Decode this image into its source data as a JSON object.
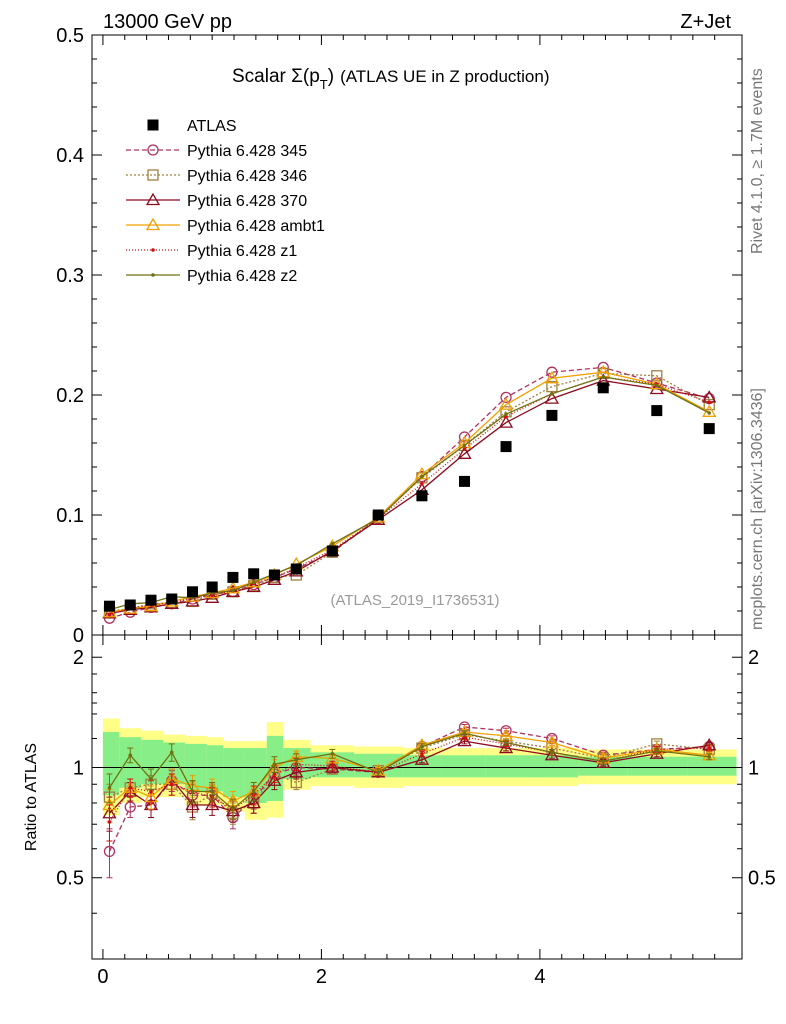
{
  "header": {
    "left": "13000 GeV pp",
    "right": "Z+Jet"
  },
  "side_labels": {
    "rivet": "Rivet 4.1.0, ≥ 1.7M events",
    "mcplots": "mcplots.cern.ch [arXiv:1306.3436]"
  },
  "reference": "(ATLAS_2019_I1736531)",
  "chart_data": [
    {
      "type": "scatter",
      "panel": "main",
      "title": "Scalar Σ(pT) (ATLAS UE in Z production)",
      "title_parts": {
        "main": "Scalar Σ(p",
        "sub": "T",
        "close": ")",
        "rest": "(ATLAS UE in Z production)"
      },
      "xlabel": "",
      "ylabel": "",
      "xlim": [
        -0.1,
        5.85
      ],
      "ylim": [
        0,
        0.5
      ],
      "yticks": [
        0,
        0.1,
        0.2,
        0.3,
        0.4,
        0.5
      ],
      "ytick_labels": [
        "0",
        "0.1",
        "0.2",
        "0.3",
        "0.4",
        "0.5"
      ],
      "legend_position": "top-left",
      "x": [
        0.06,
        0.25,
        0.44,
        0.63,
        0.82,
        1.0,
        1.19,
        1.38,
        1.57,
        1.77,
        2.1,
        2.52,
        2.92,
        3.31,
        3.69,
        4.11,
        4.58,
        5.07,
        5.55
      ],
      "series": [
        {
          "name": "ATLAS",
          "style": "data",
          "color": "#000000",
          "values": [
            0.024,
            0.025,
            0.029,
            0.03,
            0.036,
            0.04,
            0.048,
            0.051,
            0.05,
            0.055,
            0.07,
            0.1,
            0.116,
            0.128,
            0.157,
            0.183,
            0.206,
            0.187,
            0.172
          ]
        },
        {
          "name": "Pythia 6.428 345",
          "color": "#b03060",
          "dash": "5,3",
          "marker": "circle",
          "values": [
            0.014,
            0.019,
            0.023,
            0.026,
            0.03,
            0.034,
            0.036,
            0.042,
            0.048,
            0.055,
            0.069,
            0.097,
            0.132,
            0.165,
            0.198,
            0.219,
            0.223,
            0.21,
            0.197
          ]
        },
        {
          "name": "Pythia 6.428 346",
          "color": "#a08040",
          "dash": "2,2",
          "marker": "square",
          "values": [
            0.02,
            0.022,
            0.026,
            0.027,
            0.028,
            0.034,
            0.036,
            0.041,
            0.048,
            0.05,
            0.069,
            0.098,
            0.131,
            0.158,
            0.186,
            0.207,
            0.218,
            0.216,
            0.192
          ]
        },
        {
          "name": "Pythia 6.428 370",
          "color": "#8b0a1e",
          "dash": "",
          "marker": "triangle",
          "values": [
            0.018,
            0.021,
            0.023,
            0.026,
            0.028,
            0.031,
            0.036,
            0.04,
            0.046,
            0.053,
            0.07,
            0.096,
            0.121,
            0.151,
            0.177,
            0.197,
            0.212,
            0.205,
            0.198
          ]
        },
        {
          "name": "Pythia 6.428 ambt1",
          "color": "#f0a000",
          "dash": "",
          "marker": "triangle",
          "values": [
            0.019,
            0.022,
            0.024,
            0.028,
            0.032,
            0.035,
            0.039,
            0.044,
            0.05,
            0.059,
            0.074,
            0.098,
            0.134,
            0.16,
            0.192,
            0.214,
            0.219,
            0.209,
            0.186
          ]
        },
        {
          "name": "Pythia 6.428 z1",
          "color": "#d01010",
          "dash": "1,2",
          "marker": "dot",
          "values": [
            0.017,
            0.022,
            0.025,
            0.027,
            0.031,
            0.033,
            0.037,
            0.043,
            0.048,
            0.056,
            0.071,
            0.097,
            0.126,
            0.155,
            0.182,
            0.201,
            0.215,
            0.209,
            0.194
          ]
        },
        {
          "name": "Pythia 6.428 z2",
          "color": "#707010",
          "dash": "",
          "marker": "dot",
          "values": [
            0.021,
            0.026,
            0.027,
            0.032,
            0.031,
            0.035,
            0.037,
            0.044,
            0.051,
            0.058,
            0.076,
            0.097,
            0.132,
            0.158,
            0.184,
            0.201,
            0.215,
            0.208,
            0.185
          ]
        }
      ]
    },
    {
      "type": "line",
      "panel": "ratio",
      "ylabel": "Ratio to ATLAS",
      "ylim": [
        0.3,
        2.3
      ],
      "yticks": [
        0.5,
        1,
        2
      ],
      "ytick_labels": [
        "0.5",
        "1",
        "2"
      ],
      "xticks": [
        0,
        2,
        4
      ],
      "xtick_labels": [
        "0",
        "2",
        "4"
      ],
      "x": [
        0.06,
        0.25,
        0.44,
        0.63,
        0.82,
        1.0,
        1.19,
        1.38,
        1.57,
        1.77,
        2.1,
        2.52,
        2.92,
        3.31,
        3.69,
        4.11,
        4.58,
        5.07,
        5.55
      ],
      "bin_edges": [
        0,
        0.15,
        0.35,
        0.55,
        0.75,
        0.95,
        1.1,
        1.3,
        1.5,
        1.65,
        1.9,
        2.3,
        2.75,
        3.1,
        3.5,
        3.9,
        4.35,
        4.8,
        5.35,
        5.8
      ],
      "band_total": [
        [
          0.74,
          1.36
        ],
        [
          0.8,
          1.28
        ],
        [
          0.83,
          1.26
        ],
        [
          0.83,
          1.23
        ],
        [
          0.79,
          1.22
        ],
        [
          0.79,
          1.21
        ],
        [
          0.76,
          1.18
        ],
        [
          0.72,
          1.18
        ],
        [
          0.73,
          1.33
        ],
        [
          0.87,
          1.19
        ],
        [
          0.89,
          1.15
        ],
        [
          0.88,
          1.14
        ],
        [
          0.89,
          1.13
        ],
        [
          0.89,
          1.13
        ],
        [
          0.89,
          1.13
        ],
        [
          0.89,
          1.13
        ],
        [
          0.9,
          1.12
        ],
        [
          0.9,
          1.12
        ],
        [
          0.9,
          1.12
        ]
      ],
      "band_stat": [
        [
          0.84,
          1.25
        ],
        [
          0.88,
          1.21
        ],
        [
          0.9,
          1.19
        ],
        [
          0.9,
          1.17
        ],
        [
          0.86,
          1.16
        ],
        [
          0.86,
          1.15
        ],
        [
          0.83,
          1.13
        ],
        [
          0.8,
          1.13
        ],
        [
          0.81,
          1.22
        ],
        [
          0.93,
          1.13
        ],
        [
          0.94,
          1.1
        ],
        [
          0.94,
          1.09
        ],
        [
          0.94,
          1.08
        ],
        [
          0.94,
          1.08
        ],
        [
          0.94,
          1.08
        ],
        [
          0.94,
          1.08
        ],
        [
          0.95,
          1.07
        ],
        [
          0.95,
          1.07
        ],
        [
          0.95,
          1.07
        ]
      ],
      "band_colors": {
        "total": "#ffff88",
        "stat": "#88ee88"
      },
      "series": [
        {
          "name": "Pythia 6.428 345",
          "color": "#b03060",
          "dash": "5,3",
          "marker": "circle",
          "values": [
            0.59,
            0.78,
            0.79,
            0.92,
            0.84,
            0.84,
            0.73,
            0.82,
            0.96,
            1.0,
            0.99,
            0.97,
            1.14,
            1.29,
            1.26,
            1.2,
            1.08,
            1.12,
            1.14
          ],
          "errors": [
            0.09,
            0.05,
            0.06,
            0.06,
            0.06,
            0.05,
            0.05,
            0.05,
            0.05,
            0.04,
            0.03,
            0.02,
            0.02,
            0.02,
            0.02,
            0.02,
            0.02,
            0.02,
            0.02
          ]
        },
        {
          "name": "Pythia 6.428 346",
          "color": "#a08040",
          "dash": "2,2",
          "marker": "square",
          "values": [
            0.83,
            0.88,
            0.9,
            0.9,
            0.78,
            0.85,
            0.75,
            0.8,
            0.96,
            0.91,
            0.99,
            0.98,
            1.13,
            1.23,
            1.18,
            1.13,
            1.06,
            1.16,
            1.12
          ],
          "errors": [
            0.07,
            0.05,
            0.05,
            0.06,
            0.06,
            0.05,
            0.05,
            0.05,
            0.05,
            0.04,
            0.03,
            0.02,
            0.02,
            0.02,
            0.02,
            0.02,
            0.02,
            0.02,
            0.02
          ]
        },
        {
          "name": "Pythia 6.428 370",
          "color": "#8b0a1e",
          "dash": "",
          "marker": "triangle",
          "values": [
            0.75,
            0.86,
            0.79,
            0.93,
            0.79,
            0.79,
            0.76,
            0.8,
            0.92,
            0.97,
            1.0,
            0.97,
            1.05,
            1.18,
            1.13,
            1.08,
            1.03,
            1.09,
            1.15
          ],
          "errors": [
            0.08,
            0.05,
            0.06,
            0.06,
            0.06,
            0.05,
            0.05,
            0.05,
            0.05,
            0.04,
            0.03,
            0.02,
            0.02,
            0.02,
            0.02,
            0.02,
            0.02,
            0.02,
            0.02
          ]
        },
        {
          "name": "Pythia 6.428 ambt1",
          "color": "#f0a000",
          "dash": "",
          "marker": "triangle",
          "values": [
            0.79,
            0.88,
            0.83,
            0.93,
            0.89,
            0.88,
            0.81,
            0.86,
            1.0,
            1.07,
            1.06,
            0.98,
            1.15,
            1.25,
            1.22,
            1.17,
            1.06,
            1.12,
            1.08
          ],
          "errors": [
            0.08,
            0.05,
            0.06,
            0.06,
            0.06,
            0.05,
            0.05,
            0.05,
            0.05,
            0.04,
            0.03,
            0.02,
            0.02,
            0.02,
            0.02,
            0.02,
            0.02,
            0.02,
            0.02
          ]
        },
        {
          "name": "Pythia 6.428 z1",
          "color": "#d01010",
          "dash": "1,2",
          "marker": "dot",
          "values": [
            0.71,
            0.88,
            0.86,
            0.9,
            0.86,
            0.83,
            0.77,
            0.84,
            0.96,
            1.02,
            1.01,
            0.97,
            1.09,
            1.21,
            1.16,
            1.1,
            1.04,
            1.12,
            1.13
          ],
          "errors": [
            0.08,
            0.05,
            0.06,
            0.06,
            0.06,
            0.05,
            0.05,
            0.05,
            0.05,
            0.04,
            0.03,
            0.02,
            0.02,
            0.02,
            0.02,
            0.02,
            0.02,
            0.02,
            0.02
          ]
        },
        {
          "name": "Pythia 6.428 z2",
          "color": "#707010",
          "dash": "",
          "marker": "dot",
          "values": [
            0.88,
            1.08,
            0.93,
            1.1,
            0.86,
            0.86,
            0.77,
            0.86,
            1.02,
            1.05,
            1.09,
            0.97,
            1.14,
            1.24,
            1.17,
            1.1,
            1.04,
            1.11,
            1.07
          ],
          "errors": [
            0.08,
            0.05,
            0.06,
            0.06,
            0.06,
            0.05,
            0.05,
            0.05,
            0.05,
            0.04,
            0.03,
            0.02,
            0.02,
            0.02,
            0.02,
            0.02,
            0.02,
            0.02,
            0.02
          ]
        }
      ]
    }
  ]
}
